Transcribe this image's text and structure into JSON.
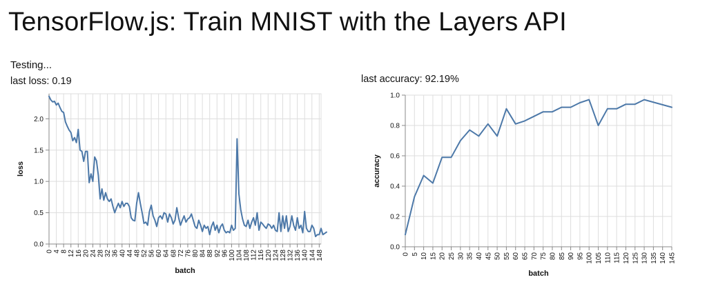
{
  "page": {
    "title": "TensorFlow.js: Train MNIST with the Layers API",
    "status": "Testing..."
  },
  "readouts": {
    "loss_label": "last loss: 0.19",
    "accuracy_label": "last accuracy: 92.19%"
  },
  "colors": {
    "line": "#4c78a8",
    "grid": "#dddddd",
    "axis": "#888888"
  },
  "chart_data": [
    {
      "id": "loss",
      "type": "line",
      "xlabel": "batch",
      "ylabel": "loss",
      "xlim": [
        0,
        149
      ],
      "ylim": [
        0,
        2.4
      ],
      "x_ticks": [
        0,
        4,
        8,
        12,
        16,
        20,
        24,
        28,
        32,
        36,
        40,
        44,
        48,
        52,
        56,
        60,
        64,
        68,
        72,
        76,
        80,
        84,
        88,
        92,
        96,
        100,
        104,
        108,
        112,
        116,
        120,
        124,
        128,
        132,
        136,
        140,
        144,
        148
      ],
      "y_ticks": [
        0,
        0.5,
        1.0,
        1.5,
        2.0
      ],
      "y_tick_labels": [
        "0.0",
        "0.5",
        "1.0",
        "1.5",
        "2.0"
      ],
      "grid": true,
      "series": [
        {
          "values": [
            2.36,
            2.3,
            2.27,
            2.28,
            2.22,
            2.25,
            2.18,
            2.12,
            2.1,
            1.95,
            1.88,
            1.82,
            1.78,
            1.65,
            1.7,
            1.62,
            1.83,
            1.5,
            1.48,
            1.32,
            1.48,
            1.48,
            0.98,
            1.12,
            1.0,
            1.39,
            1.33,
            1.1,
            0.72,
            0.88,
            0.7,
            0.82,
            0.72,
            0.68,
            0.72,
            0.6,
            0.5,
            0.58,
            0.65,
            0.58,
            0.68,
            0.6,
            0.65,
            0.65,
            0.6,
            0.42,
            0.38,
            0.37,
            0.65,
            0.82,
            0.65,
            0.5,
            0.33,
            0.35,
            0.3,
            0.52,
            0.62,
            0.45,
            0.38,
            0.28,
            0.42,
            0.45,
            0.4,
            0.5,
            0.48,
            0.35,
            0.48,
            0.42,
            0.32,
            0.38,
            0.58,
            0.42,
            0.3,
            0.38,
            0.45,
            0.35,
            0.4,
            0.42,
            0.48,
            0.38,
            0.28,
            0.25,
            0.38,
            0.3,
            0.2,
            0.3,
            0.25,
            0.28,
            0.15,
            0.28,
            0.35,
            0.22,
            0.3,
            0.18,
            0.28,
            0.32,
            0.22,
            0.18,
            0.2,
            0.18,
            0.3,
            0.22,
            0.25,
            1.68,
            0.8,
            0.55,
            0.4,
            0.3,
            0.28,
            0.38,
            0.25,
            0.35,
            0.42,
            0.3,
            0.5,
            0.22,
            0.35,
            0.32,
            0.28,
            0.25,
            0.32,
            0.3,
            0.25,
            0.3,
            0.22,
            0.2,
            0.5,
            0.2,
            0.45,
            0.25,
            0.45,
            0.2,
            0.28,
            0.45,
            0.3,
            0.22,
            0.42,
            0.25,
            0.3,
            0.18,
            0.52,
            0.25,
            0.2,
            0.2,
            0.3,
            0.25,
            0.12,
            0.15,
            0.15,
            0.25,
            0.15,
            0.17,
            0.19
          ]
        }
      ]
    },
    {
      "id": "accuracy",
      "type": "line",
      "xlabel": "batch",
      "ylabel": "accuracy",
      "xlim": [
        0,
        145
      ],
      "ylim": [
        0,
        1.0
      ],
      "x_ticks": [
        0,
        5,
        10,
        15,
        20,
        25,
        30,
        35,
        40,
        45,
        50,
        55,
        60,
        65,
        70,
        75,
        80,
        85,
        90,
        95,
        100,
        105,
        110,
        115,
        120,
        125,
        130,
        135,
        140,
        145
      ],
      "y_ticks": [
        0,
        0.2,
        0.4,
        0.6,
        0.8,
        1.0
      ],
      "y_tick_labels": [
        "0.0",
        "0.2",
        "0.4",
        "0.6",
        "0.8",
        "1.0"
      ],
      "grid": true,
      "series": [
        {
          "x": [
            0,
            5,
            10,
            15,
            20,
            25,
            30,
            35,
            40,
            45,
            50,
            55,
            60,
            65,
            70,
            75,
            80,
            85,
            90,
            95,
            100,
            105,
            110,
            115,
            120,
            125,
            130,
            145
          ],
          "values": [
            0.08,
            0.33,
            0.47,
            0.42,
            0.59,
            0.59,
            0.7,
            0.77,
            0.73,
            0.81,
            0.73,
            0.91,
            0.81,
            0.83,
            0.86,
            0.89,
            0.89,
            0.92,
            0.92,
            0.95,
            0.97,
            0.8,
            0.91,
            0.91,
            0.94,
            0.94,
            0.97,
            0.92
          ]
        }
      ]
    }
  ]
}
